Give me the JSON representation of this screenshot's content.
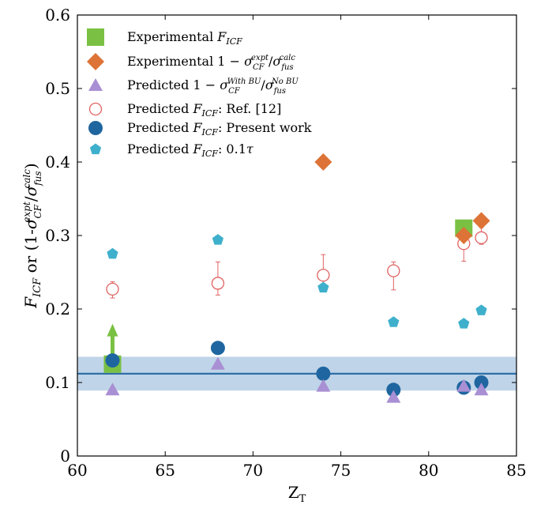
{
  "chart_data": {
    "type": "scatter",
    "xlabel": "Z",
    "xlabel_sub": "T",
    "ylabel_parts": {
      "f": "F",
      "f_sub": "ICF",
      "or": " or ",
      "open": "(1-",
      "sigma": "σ",
      "sigma_sup": "expt",
      "sigma_sub": "CF",
      "slash": "/",
      "sigma2": "σ",
      "sigma2_sup": "calc",
      "sigma2_sub": "fus",
      "close": ")"
    },
    "xlim": [
      60,
      85
    ],
    "ylim": [
      0,
      0.6
    ],
    "xticks": [
      "60",
      "65",
      "70",
      "75",
      "80",
      "85"
    ],
    "yticks": [
      "0",
      "0.1",
      "0.2",
      "0.3",
      "0.4",
      "0.5",
      "0.6"
    ],
    "legend_position": "top-left",
    "band": {
      "center": 0.112,
      "low": 0.089,
      "high": 0.135,
      "line_color": "#2e6fa8",
      "fill_color": "#a9c6e0"
    },
    "arrow": {
      "x": 62,
      "from": 0.137,
      "to": 0.18,
      "color": "#7ac143"
    },
    "series": [
      {
        "key": "exp_ficf",
        "name_parts": [
          "Experimental ",
          "F",
          "ICF",
          "",
          "",
          "",
          "",
          "",
          ""
        ],
        "marker": "square",
        "color": "#7ac143",
        "points": [
          {
            "x": 62,
            "y": 0.125
          },
          {
            "x": 82,
            "y": 0.31
          }
        ]
      },
      {
        "key": "exp_sigma",
        "name_parts": [
          "Experimental 1 − ",
          "σ",
          "CF",
          "expt",
          "/",
          "σ",
          "fus",
          "calc",
          ""
        ],
        "marker": "diamond",
        "color": "#dd7336",
        "points": [
          {
            "x": 74,
            "y": 0.4
          },
          {
            "x": 82,
            "y": 0.3
          },
          {
            "x": 83,
            "y": 0.32
          }
        ]
      },
      {
        "key": "pred_sigma",
        "name_parts": [
          "Predicted 1 − ",
          "σ",
          "CF",
          "With BU",
          "/",
          "σ",
          "fus",
          "No BU",
          ""
        ],
        "marker": "triangle",
        "color": "#a98fd3",
        "points": [
          {
            "x": 62,
            "y": 0.09
          },
          {
            "x": 68,
            "y": 0.125
          },
          {
            "x": 74,
            "y": 0.095
          },
          {
            "x": 78,
            "y": 0.08
          },
          {
            "x": 82,
            "y": 0.095
          },
          {
            "x": 83,
            "y": 0.09
          }
        ]
      },
      {
        "key": "pred_ref",
        "name_parts": [
          "Predicted ",
          "F",
          "ICF",
          "",
          ":  Ref. [12]",
          "",
          "",
          "",
          ""
        ],
        "marker": "open-circle",
        "color": "#e06363",
        "points": [
          {
            "x": 62,
            "y": 0.227,
            "err_low": 0.215,
            "err_high": 0.237
          },
          {
            "x": 68,
            "y": 0.235,
            "err_low": 0.219,
            "err_high": 0.264
          },
          {
            "x": 74,
            "y": 0.246,
            "err_low": 0.231,
            "err_high": 0.274
          },
          {
            "x": 78,
            "y": 0.252,
            "err_low": 0.226,
            "err_high": 0.264
          },
          {
            "x": 82,
            "y": 0.289,
            "err_low": 0.265,
            "err_high": 0.306
          },
          {
            "x": 83,
            "y": 0.297,
            "err_low": 0.288,
            "err_high": 0.311
          }
        ]
      },
      {
        "key": "pred_present",
        "name_parts": [
          "Predicted ",
          "F",
          "ICF",
          "",
          ":  Present work",
          "",
          "",
          "",
          ""
        ],
        "marker": "filled-circle",
        "color": "#1f66a0",
        "points": [
          {
            "x": 62,
            "y": 0.13
          },
          {
            "x": 68,
            "y": 0.147
          },
          {
            "x": 74,
            "y": 0.112
          },
          {
            "x": 78,
            "y": 0.09
          },
          {
            "x": 82,
            "y": 0.093
          },
          {
            "x": 83,
            "y": 0.1
          }
        ]
      },
      {
        "key": "pred_tau",
        "name_parts": [
          "Predicted ",
          "F",
          "ICF",
          "",
          ": 0.1",
          "",
          "",
          "",
          "τ"
        ],
        "marker": "pentagon",
        "color": "#3fb0cc",
        "points": [
          {
            "x": 62,
            "y": 0.275
          },
          {
            "x": 68,
            "y": 0.294
          },
          {
            "x": 74,
            "y": 0.229
          },
          {
            "x": 78,
            "y": 0.182
          },
          {
            "x": 82,
            "y": 0.18
          },
          {
            "x": 83,
            "y": 0.198
          }
        ]
      }
    ]
  }
}
